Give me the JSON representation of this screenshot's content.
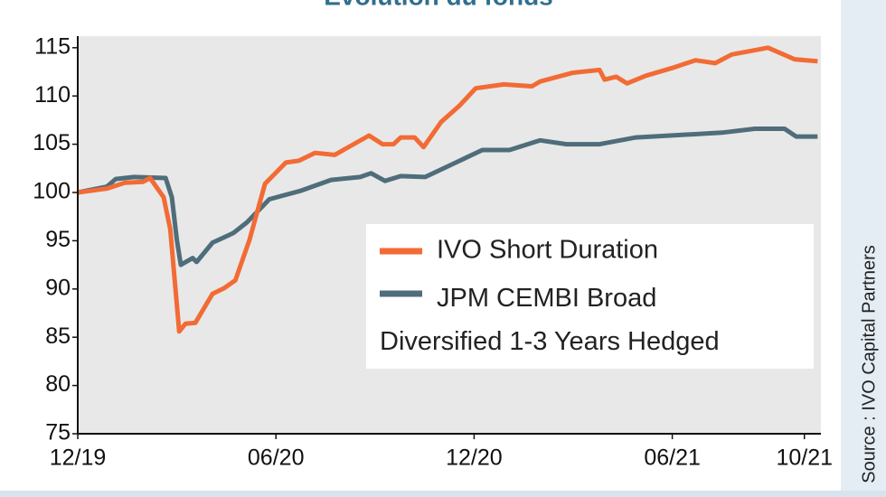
{
  "chart_data": {
    "type": "line",
    "title": "Evolution du fonds",
    "source": "Source : IVO Capital Partners",
    "xlim": [
      0,
      22.5
    ],
    "xticks": [
      {
        "value": 0,
        "label": "12/19"
      },
      {
        "value": 6,
        "label": "06/20"
      },
      {
        "value": 12,
        "label": "12/20"
      },
      {
        "value": 18,
        "label": "06/21"
      },
      {
        "value": 22,
        "label": "10/21"
      }
    ],
    "ylim": [
      75,
      116.2
    ],
    "yticks": [
      75,
      80,
      85,
      90,
      95,
      100,
      105,
      110,
      115
    ],
    "grid": false,
    "series": [
      {
        "name": "IVO Short Duration",
        "color": "#f26b35",
        "x": [
          0,
          0.88,
          1.42,
          1.97,
          2.19,
          2.6,
          2.8,
          3.07,
          3.26,
          3.56,
          4.08,
          4.44,
          4.77,
          5.2,
          5.67,
          6.3,
          6.7,
          7.18,
          7.78,
          8.82,
          9.23,
          9.56,
          9.78,
          10.2,
          10.47,
          11.0,
          11.56,
          12.05,
          12.9,
          13.75,
          14.0,
          14.98,
          15.8,
          15.95,
          16.3,
          16.63,
          17.2,
          18.0,
          18.7,
          19.3,
          19.8,
          20.9,
          21.7,
          22.4
        ],
        "values": [
          100,
          100.4,
          101.0,
          101.1,
          101.5,
          99.5,
          96.2,
          85.6,
          86.4,
          86.5,
          89.5,
          90.1,
          90.9,
          95.1,
          100.9,
          103.1,
          103.3,
          104.1,
          103.9,
          105.9,
          105.0,
          105.0,
          105.7,
          105.7,
          104.7,
          107.3,
          109.0,
          110.8,
          111.2,
          111.0,
          111.5,
          112.4,
          112.7,
          111.7,
          112.0,
          111.3,
          112.1,
          112.9,
          113.7,
          113.4,
          114.3,
          115.0,
          113.8,
          113.6
        ]
      },
      {
        "name": "JPM CEMBI Broad\nDiversified 1-3 Years Hedged",
        "color": "#4f6d7a",
        "x": [
          0,
          0.88,
          1.15,
          1.7,
          2.66,
          2.85,
          3.0,
          3.12,
          3.48,
          3.6,
          4.08,
          4.71,
          5.12,
          5.8,
          6.77,
          7.67,
          8.55,
          8.88,
          9.3,
          9.78,
          10.52,
          12.25,
          13.07,
          14.0,
          14.8,
          15.8,
          16.9,
          19.5,
          20.5,
          21.4,
          21.75,
          22.4
        ],
        "values": [
          100,
          100.6,
          101.4,
          101.6,
          101.5,
          99.5,
          95.1,
          92.5,
          93.2,
          92.8,
          94.8,
          95.8,
          96.9,
          99.3,
          100.2,
          101.3,
          101.6,
          102.0,
          101.2,
          101.7,
          101.6,
          104.4,
          104.4,
          105.4,
          105.0,
          105.0,
          105.7,
          106.2,
          106.6,
          106.6,
          105.8,
          105.8
        ]
      }
    ]
  }
}
